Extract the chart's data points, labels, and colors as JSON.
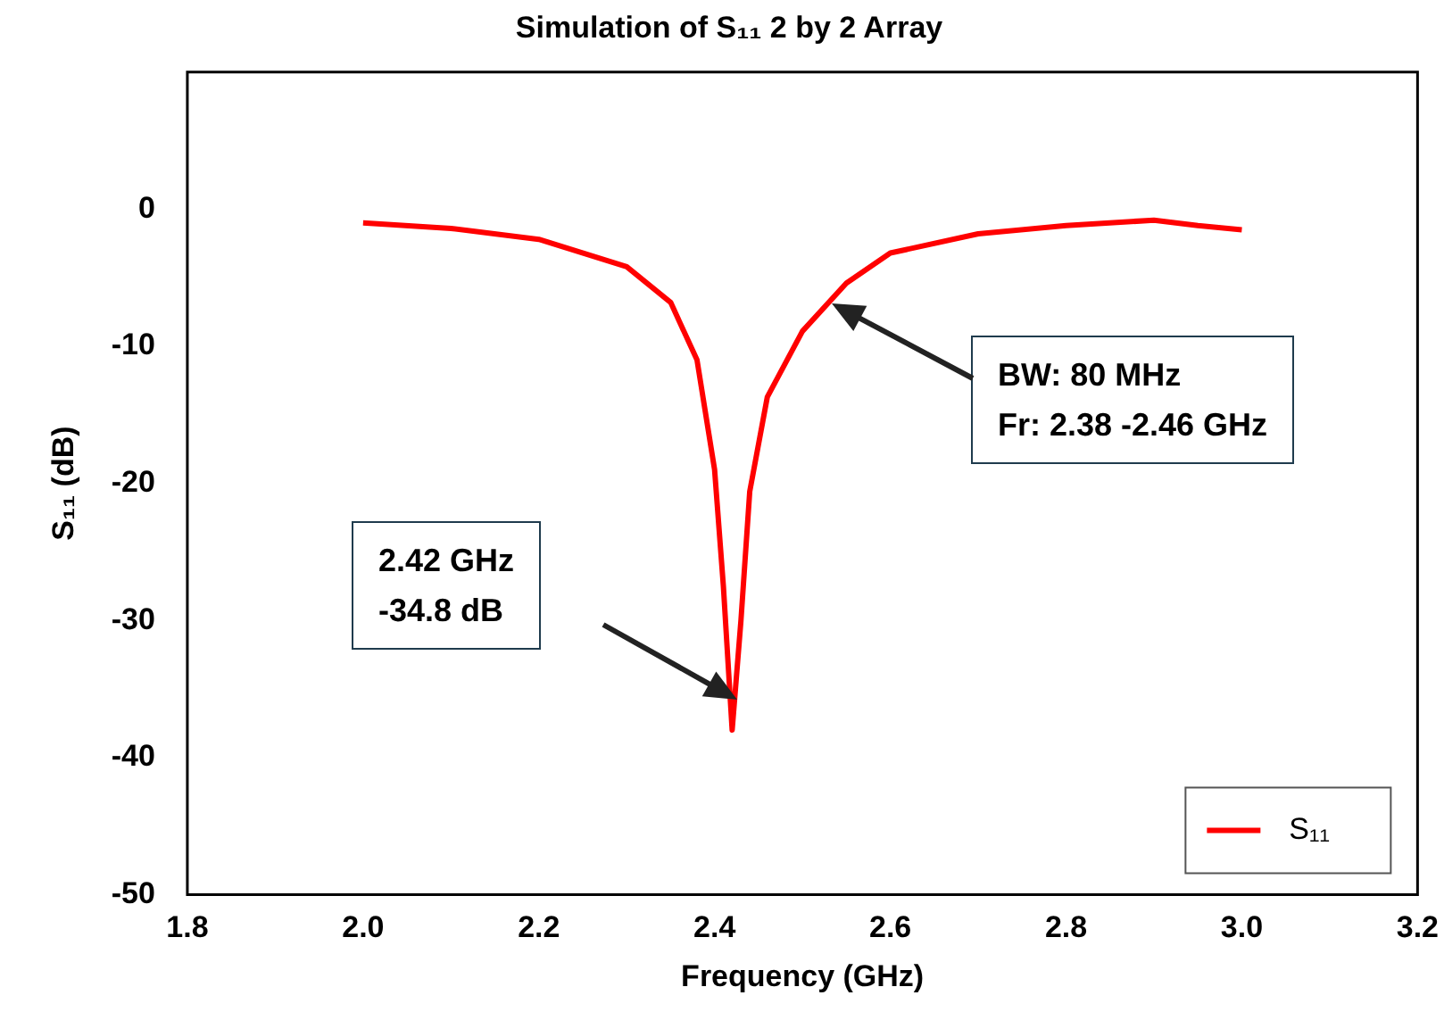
{
  "chart_data": {
    "type": "line",
    "title": "Simulation of S₁₁ 2 by 2 Array",
    "xlabel": "Frequency (GHz)",
    "ylabel": "S₁₁ (dB)",
    "series": [
      {
        "name": "S₁₁",
        "color": "#ff0000",
        "x": [
          2.0,
          2.1,
          2.2,
          2.3,
          2.35,
          2.38,
          2.4,
          2.41,
          2.42,
          2.43,
          2.44,
          2.46,
          2.5,
          2.55,
          2.6,
          2.7,
          2.8,
          2.9,
          2.95,
          3.0
        ],
        "values": [
          -1.0,
          -1.4,
          -2.2,
          -4.2,
          -6.8,
          -11,
          -19,
          -27.5,
          -38,
          -30,
          -20.6,
          -13.7,
          -8.9,
          -5.4,
          -3.2,
          -1.8,
          -1.2,
          -0.8,
          -1.2,
          -1.5
        ]
      }
    ],
    "xlim": [
      1.8,
      3.2
    ],
    "xticks": [
      {
        "value": 1.8,
        "label": "1.8"
      },
      {
        "value": 2.0,
        "label": "2.0"
      },
      {
        "value": 2.2,
        "label": "2.2"
      },
      {
        "value": 2.4,
        "label": "2.4"
      },
      {
        "value": 2.6,
        "label": "2.6"
      },
      {
        "value": 2.8,
        "label": "2.8"
      },
      {
        "value": 3.0,
        "label": "3.0"
      },
      {
        "value": 3.2,
        "label": "3.2"
      }
    ],
    "ylim": [
      -50,
      10
    ],
    "yticks": [
      -50,
      -40,
      -30,
      -20,
      -10,
      0
    ],
    "annotations": [
      "2.42 GHz\n-34.8 dB",
      "BW: 80 MHz\nFr: 2.38 -2.46 GHz"
    ],
    "grid": false,
    "legend": "bottom right",
    "marker": "none",
    "line_style": "solid"
  }
}
